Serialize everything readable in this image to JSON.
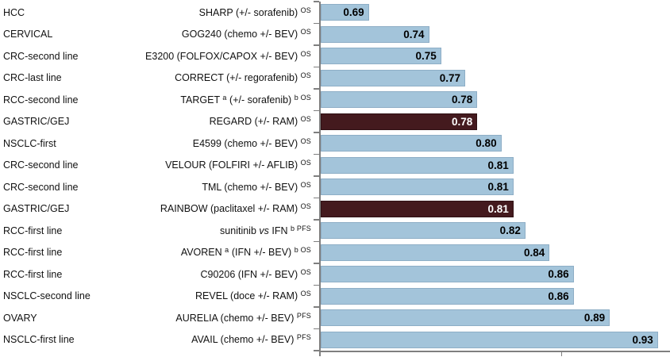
{
  "chart_data": {
    "type": "bar",
    "orientation": "horizontal",
    "title": "",
    "xlabel": "",
    "ylabel": "",
    "grid": false,
    "legend": false,
    "x_axis": {
      "min": 0.65,
      "max": 0.94,
      "ticks": [
        0.65,
        0.85
      ]
    },
    "rows": [
      {
        "cancer": "HCC",
        "trial": "SHARP (+/- sorafenib)",
        "endpoint": "OS",
        "value": 0.69,
        "display": "0.69",
        "highlighted": false,
        "segments": [
          {
            "text": "SHARP (+/- sorafenib) ",
            "style": "normal"
          },
          {
            "text": "OS",
            "style": "sup"
          }
        ]
      },
      {
        "cancer": "CERVICAL",
        "trial": "GOG240 (chemo +/- BEV)",
        "endpoint": "OS",
        "value": 0.74,
        "display": "0.74",
        "highlighted": false,
        "segments": [
          {
            "text": "GOG240 (chemo +/- BEV) ",
            "style": "normal"
          },
          {
            "text": "OS",
            "style": "sup"
          }
        ]
      },
      {
        "cancer": "CRC-second line",
        "trial": "E3200 (FOLFOX/CAPOX +/- BEV)",
        "endpoint": "OS",
        "value": 0.75,
        "display": "0.75",
        "highlighted": false,
        "segments": [
          {
            "text": "E3200 (FOLFOX/CAPOX +/- BEV) ",
            "style": "normal"
          },
          {
            "text": "OS",
            "style": "sup"
          }
        ]
      },
      {
        "cancer": "CRC-last line",
        "trial": "CORRECT (+/- regorafenib)",
        "endpoint": "OS",
        "value": 0.77,
        "display": "0.77",
        "highlighted": false,
        "segments": [
          {
            "text": "CORRECT (+/- regorafenib) ",
            "style": "normal"
          },
          {
            "text": "OS",
            "style": "sup"
          }
        ]
      },
      {
        "cancer": "RCC-second line",
        "trial": "TARGET a (+/- sorafenib) b",
        "endpoint": "OS",
        "value": 0.78,
        "display": "0.78",
        "highlighted": false,
        "segments": [
          {
            "text": "TARGET ",
            "style": "normal"
          },
          {
            "text": "a",
            "style": "sup"
          },
          {
            "text": " (+/- sorafenib) ",
            "style": "normal"
          },
          {
            "text": "b OS",
            "style": "sup"
          }
        ]
      },
      {
        "cancer": "GASTRIC/GEJ",
        "trial": "REGARD (+/- RAM)",
        "endpoint": "OS",
        "value": 0.78,
        "display": "0.78",
        "highlighted": true,
        "segments": [
          {
            "text": "REGARD (+/- RAM) ",
            "style": "normal"
          },
          {
            "text": "OS",
            "style": "sup"
          }
        ]
      },
      {
        "cancer": "NSCLC-first",
        "trial": "E4599 (chemo +/- BEV)",
        "endpoint": "OS",
        "value": 0.8,
        "display": "0.80",
        "highlighted": false,
        "segments": [
          {
            "text": "E4599 (chemo +/- BEV) ",
            "style": "normal"
          },
          {
            "text": "OS",
            "style": "sup"
          }
        ]
      },
      {
        "cancer": "CRC-second line",
        "trial": "VELOUR (FOLFIRI +/- AFLIB)",
        "endpoint": "OS",
        "value": 0.81,
        "display": "0.81",
        "highlighted": false,
        "segments": [
          {
            "text": "VELOUR (FOLFIRI +/- AFLIB) ",
            "style": "normal"
          },
          {
            "text": "OS",
            "style": "sup"
          }
        ]
      },
      {
        "cancer": "CRC-second line",
        "trial": "TML (chemo +/- BEV)",
        "endpoint": "OS",
        "value": 0.81,
        "display": "0.81",
        "highlighted": false,
        "segments": [
          {
            "text": "TML (chemo +/- BEV) ",
            "style": "normal"
          },
          {
            "text": "OS",
            "style": "sup"
          }
        ]
      },
      {
        "cancer": "GASTRIC/GEJ",
        "trial": "RAINBOW (paclitaxel +/- RAM)",
        "endpoint": "OS",
        "value": 0.81,
        "display": "0.81",
        "highlighted": true,
        "segments": [
          {
            "text": "RAINBOW (paclitaxel +/- RAM) ",
            "style": "normal"
          },
          {
            "text": "OS",
            "style": "sup"
          }
        ]
      },
      {
        "cancer": "RCC-first line",
        "trial": "sunitinib vs IFN b",
        "endpoint": "PFS",
        "value": 0.82,
        "display": "0.82",
        "highlighted": false,
        "segments": [
          {
            "text": "sunitinib ",
            "style": "normal"
          },
          {
            "text": "vs",
            "style": "italic"
          },
          {
            "text": " IFN ",
            "style": "normal"
          },
          {
            "text": "b PFS",
            "style": "sup"
          }
        ]
      },
      {
        "cancer": "RCC-first line",
        "trial": "AVOREN a (IFN +/- BEV) b",
        "endpoint": "OS",
        "value": 0.84,
        "display": "0.84",
        "highlighted": false,
        "segments": [
          {
            "text": "AVOREN ",
            "style": "normal"
          },
          {
            "text": "a",
            "style": "sup"
          },
          {
            "text": " (IFN +/- BEV) ",
            "style": "normal"
          },
          {
            "text": "b OS",
            "style": "sup"
          }
        ]
      },
      {
        "cancer": "RCC-first line",
        "trial": "C90206 (IFN +/- BEV)",
        "endpoint": "OS",
        "value": 0.86,
        "display": "0.86",
        "highlighted": false,
        "segments": [
          {
            "text": "C90206 (IFN +/- BEV) ",
            "style": "normal"
          },
          {
            "text": "OS",
            "style": "sup"
          }
        ]
      },
      {
        "cancer": "NSCLC-second line",
        "trial": "REVEL (doce +/- RAM)",
        "endpoint": "OS",
        "value": 0.86,
        "display": "0.86",
        "highlighted": false,
        "segments": [
          {
            "text": "REVEL (doce +/- RAM) ",
            "style": "normal"
          },
          {
            "text": "OS",
            "style": "sup"
          }
        ]
      },
      {
        "cancer": "OVARY",
        "trial": "AURELIA (chemo +/- BEV)",
        "endpoint": "PFS",
        "value": 0.89,
        "display": "0.89",
        "highlighted": false,
        "segments": [
          {
            "text": "AURELIA (chemo +/- BEV) ",
            "style": "normal"
          },
          {
            "text": "PFS",
            "style": "sup"
          }
        ]
      },
      {
        "cancer": "NSCLC-first line",
        "trial": "AVAIL (chemo +/- BEV)",
        "endpoint": "PFS",
        "value": 0.93,
        "display": "0.93",
        "highlighted": false,
        "segments": [
          {
            "text": "AVAIL (chemo +/- BEV) ",
            "style": "normal"
          },
          {
            "text": "PFS",
            "style": "sup"
          }
        ]
      }
    ]
  },
  "colors": {
    "bar_default": "#a3c4da",
    "bar_border": "#8eaec6",
    "bar_highlight": "#441a1e",
    "bar_highlight_border": "#301114",
    "axis": "#7f7f7f",
    "value_text": "#000000",
    "value_text_on_dark": "#ffffff"
  }
}
